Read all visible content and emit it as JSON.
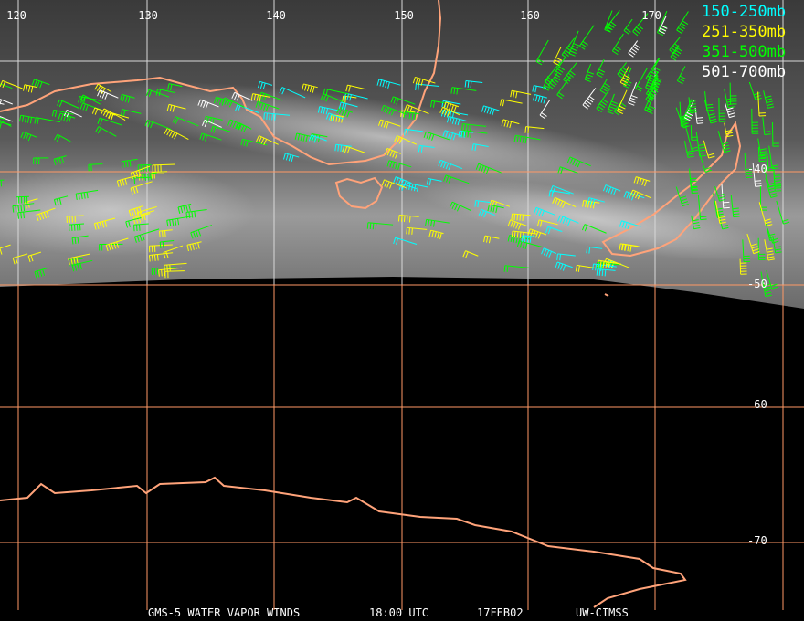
{
  "title_bar": {
    "product": "GMS-5 WATER VAPOR WINDS",
    "time": "18:00 UTC",
    "date": "17FEB02",
    "source": "UW-CIMSS"
  },
  "legend": [
    {
      "label": "150-250mb",
      "color": "#00ffff"
    },
    {
      "label": "251-350mb",
      "color": "#ffff00"
    },
    {
      "label": "351-500mb",
      "color": "#00ff00"
    },
    {
      "label": "501-700mb",
      "color": "#ffffff"
    }
  ],
  "longitude_labels": [
    "-120",
    "-130",
    "-140",
    "-150",
    "-160",
    "-170"
  ],
  "latitude_labels": [
    "-40",
    "-50",
    "-60",
    "-70"
  ],
  "colors": {
    "coastline": "#ffa37a",
    "grid_upper": "#d8d8d8",
    "grid_lower": "#ff9966",
    "background": "#000000"
  }
}
